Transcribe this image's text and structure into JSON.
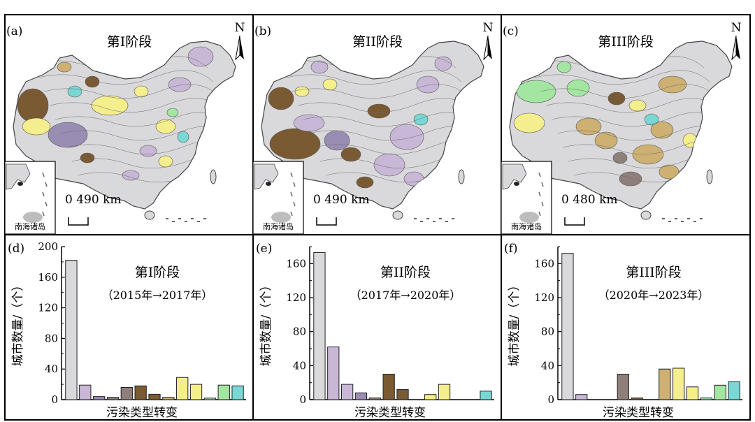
{
  "map_panels": [
    {
      "label": "(a)",
      "stage": "第I阶段",
      "scale_text": "0 490 km",
      "inset_label": "南海诸岛",
      "north": "N"
    },
    {
      "label": "(b)",
      "stage": "第II阶段",
      "scale_text": "0 490 km",
      "inset_label": "南海诸岛",
      "north": "N"
    },
    {
      "label": "(c)",
      "stage": "第III阶段",
      "scale_text": "0 480 km",
      "inset_label": "南海诸岛",
      "north": "N"
    }
  ],
  "colors": {
    "gray": "#d9d9dc",
    "purple": "#c8b7d6",
    "violet": "#9a8db3",
    "taupe": "#8f7f7a",
    "brown": "#7a5a33",
    "tan": "#cdb072",
    "yellow": "#f5ee8c",
    "lightgreen": "#a3e6a1",
    "cyan": "#79d7d4",
    "border": "#444444"
  },
  "chart_data": [
    {
      "type": "bar",
      "label": "(d)",
      "title": "第I阶段",
      "subtitle": "（2015年→2017年）",
      "xlabel": "污染类型转变",
      "ylabel": "城市数量/（个）",
      "ylim": [
        0,
        200
      ],
      "yticks": [
        0,
        40,
        80,
        120,
        160,
        200
      ],
      "values": [
        182,
        19,
        4,
        3,
        16,
        18,
        7,
        3,
        29,
        20,
        2,
        19,
        18
      ],
      "colors": [
        "gray",
        "purple",
        "violet",
        "taupe",
        "taupe",
        "brown",
        "brown",
        "tan",
        "yellow",
        "yellow",
        "lightgreen",
        "lightgreen",
        "cyan"
      ]
    },
    {
      "type": "bar",
      "label": "(e)",
      "title": "第II阶段",
      "subtitle": "（2017年→2020年）",
      "xlabel": "污染类型转变",
      "ylabel": "城市数量/（个）",
      "ylim": [
        0,
        180
      ],
      "yticks": [
        0,
        40,
        80,
        120,
        160
      ],
      "values": [
        173,
        62,
        18,
        8,
        2,
        30,
        12,
        0,
        6,
        18,
        0,
        0,
        10
      ],
      "colors": [
        "gray",
        "purple",
        "purple",
        "violet",
        "taupe",
        "brown",
        "brown",
        "tan",
        "yellow",
        "yellow",
        "lightgreen",
        "lightgreen",
        "cyan"
      ]
    },
    {
      "type": "bar",
      "label": "(f)",
      "title": "第III阶段",
      "subtitle": "（2020年→2023年）",
      "xlabel": "污染类型转变",
      "ylabel": "城市数量/（个）",
      "ylim": [
        0,
        180
      ],
      "yticks": [
        0,
        40,
        80,
        120,
        160
      ],
      "values": [
        172,
        6,
        0,
        0,
        30,
        2,
        0,
        36,
        37,
        15,
        2,
        17,
        21
      ],
      "colors": [
        "gray",
        "purple",
        "violet",
        "violet",
        "taupe",
        "brown",
        "brown",
        "tan",
        "yellow",
        "yellow",
        "lightgreen",
        "lightgreen",
        "cyan"
      ]
    }
  ]
}
